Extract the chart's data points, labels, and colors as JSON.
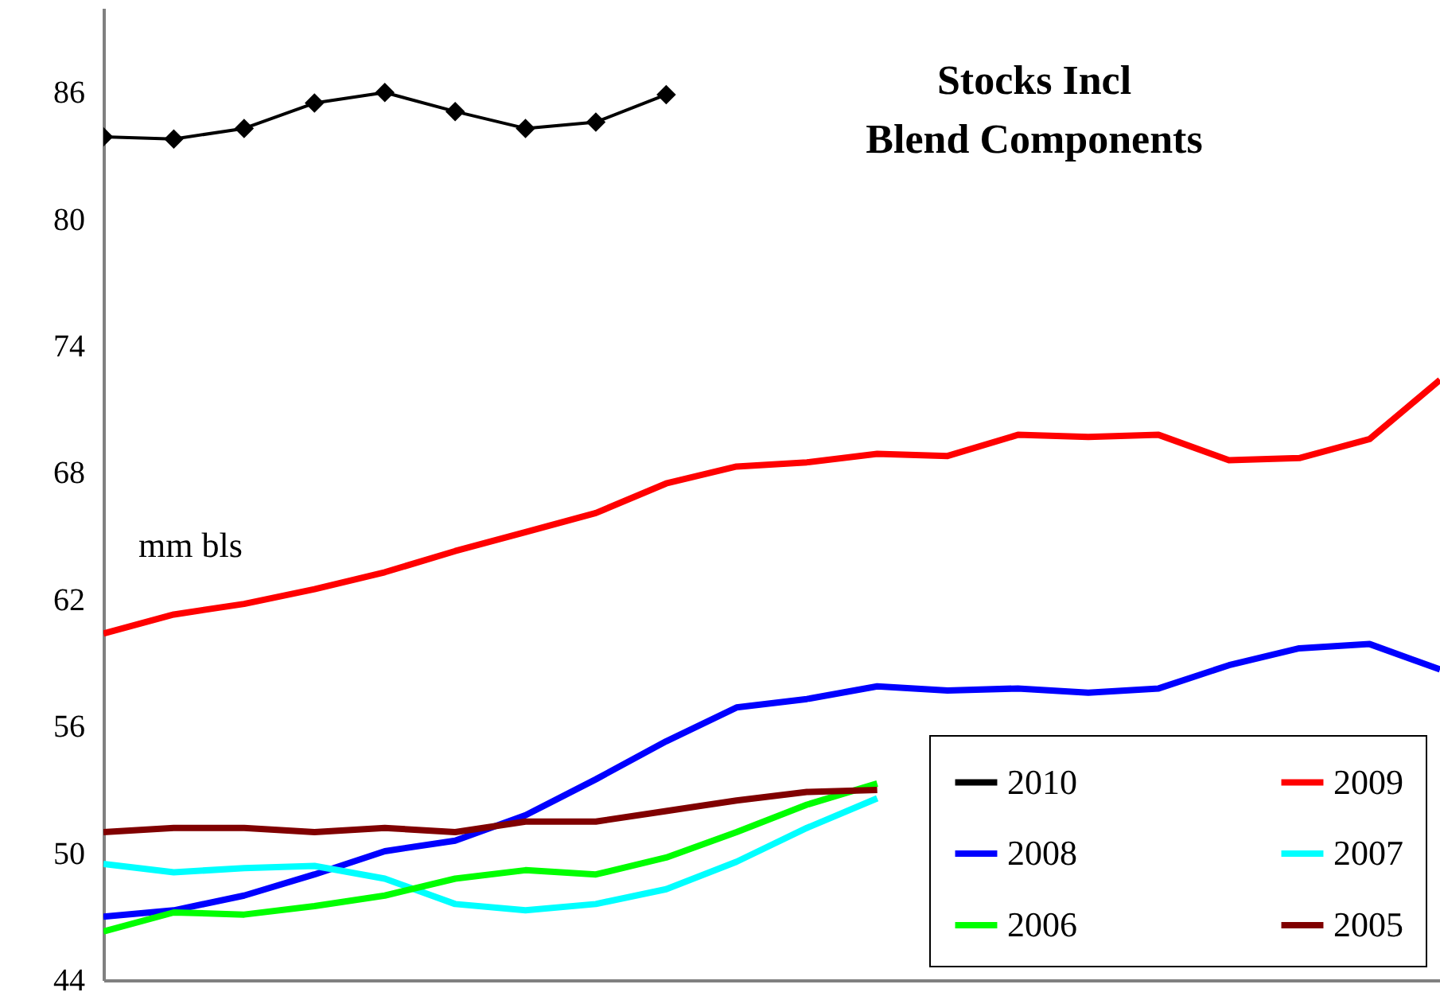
{
  "chart_data": {
    "type": "line",
    "title": "Stocks Incl\nBlend Components",
    "ylabel": "mm  bls",
    "categories": [
      null,
      null,
      null,
      null,
      null,
      null,
      null,
      null,
      null,
      null,
      null,
      null,
      null,
      null,
      null,
      null,
      null,
      null,
      null,
      null
    ],
    "ylim": [
      44,
      90
    ],
    "yticks": [
      44,
      50,
      56,
      62,
      68,
      74,
      80,
      86
    ],
    "grid": false,
    "legend": "bottom right",
    "series": [
      {
        "name": "2010",
        "color": "#000000",
        "marker": "diamond",
        "values": [
          83.9,
          83.8,
          84.3,
          85.5,
          86.0,
          85.1,
          84.3,
          84.6,
          85.9,
          null,
          null,
          null,
          null,
          null,
          null,
          null,
          null,
          null,
          null,
          null
        ]
      },
      {
        "name": "2009",
        "color": "#ff0000",
        "values": [
          60.4,
          61.3,
          61.8,
          62.5,
          63.3,
          64.3,
          65.2,
          66.1,
          67.5,
          68.3,
          68.5,
          68.9,
          68.8,
          69.8,
          69.7,
          69.8,
          68.6,
          68.7,
          69.6,
          72.4
        ]
      },
      {
        "name": "2008",
        "color": "#0000ff",
        "values": [
          47.0,
          47.3,
          48.0,
          49.0,
          50.1,
          50.6,
          51.8,
          53.5,
          55.3,
          56.9,
          57.3,
          57.9,
          57.7,
          57.8,
          57.6,
          57.8,
          58.9,
          59.7,
          59.9,
          58.7
        ]
      },
      {
        "name": "2007",
        "color": "#00ffff",
        "values": [
          49.5,
          49.1,
          49.3,
          49.4,
          48.8,
          47.6,
          47.3,
          47.6,
          48.3,
          49.6,
          51.2,
          52.6,
          null,
          null,
          null,
          null,
          null,
          null,
          null,
          null
        ]
      },
      {
        "name": "2006",
        "color": "#00ff00",
        "values": [
          46.3,
          47.2,
          47.1,
          47.5,
          48.0,
          48.8,
          49.2,
          49.0,
          49.8,
          51.0,
          52.3,
          53.3,
          null,
          null,
          null,
          null,
          null,
          null,
          null,
          null
        ]
      },
      {
        "name": "2005",
        "color": "#800000",
        "values": [
          51.0,
          51.2,
          51.2,
          51.0,
          51.2,
          51.0,
          51.5,
          51.5,
          52.0,
          52.5,
          52.9,
          53.0,
          null,
          null,
          null,
          null,
          null,
          null,
          null,
          null
        ]
      }
    ]
  }
}
